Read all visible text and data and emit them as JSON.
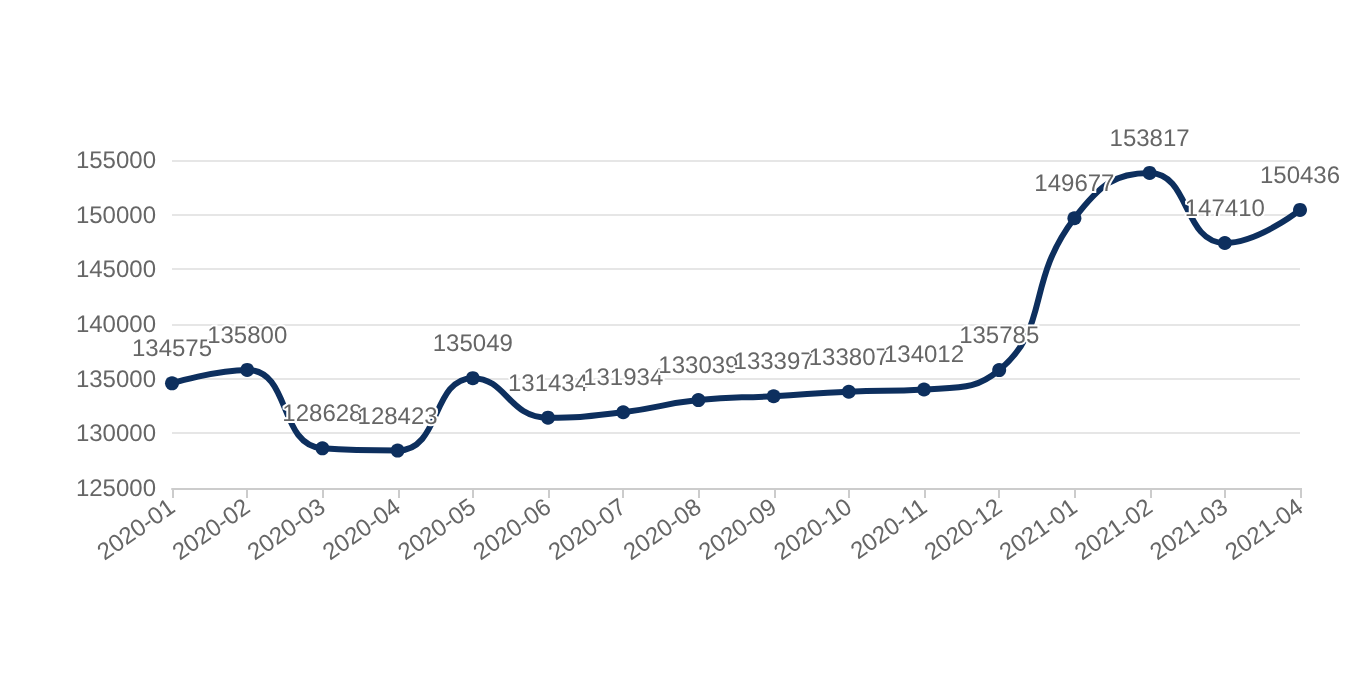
{
  "chart_data": {
    "type": "line",
    "categories": [
      "2020-01",
      "2020-02",
      "2020-03",
      "2020-04",
      "2020-05",
      "2020-06",
      "2020-07",
      "2020-08",
      "2020-09",
      "2020-10",
      "2020-11",
      "2020-12",
      "2021-01",
      "2021-02",
      "2021-03",
      "2021-04"
    ],
    "series": [
      {
        "color": "#0d2f5e",
        "values": [
          134575,
          135800,
          128628,
          128423,
          135049,
          131434,
          131934,
          133039,
          133397,
          133807,
          134012,
          135785,
          149677,
          153817,
          147410,
          150436
        ]
      }
    ],
    "ylim": [
      125000,
      155000
    ],
    "yticks": [
      125000,
      130000,
      135000,
      140000,
      145000,
      150000,
      155000
    ],
    "grid": "y",
    "marker": "circle",
    "line_style": "solid",
    "data_labels": true
  }
}
